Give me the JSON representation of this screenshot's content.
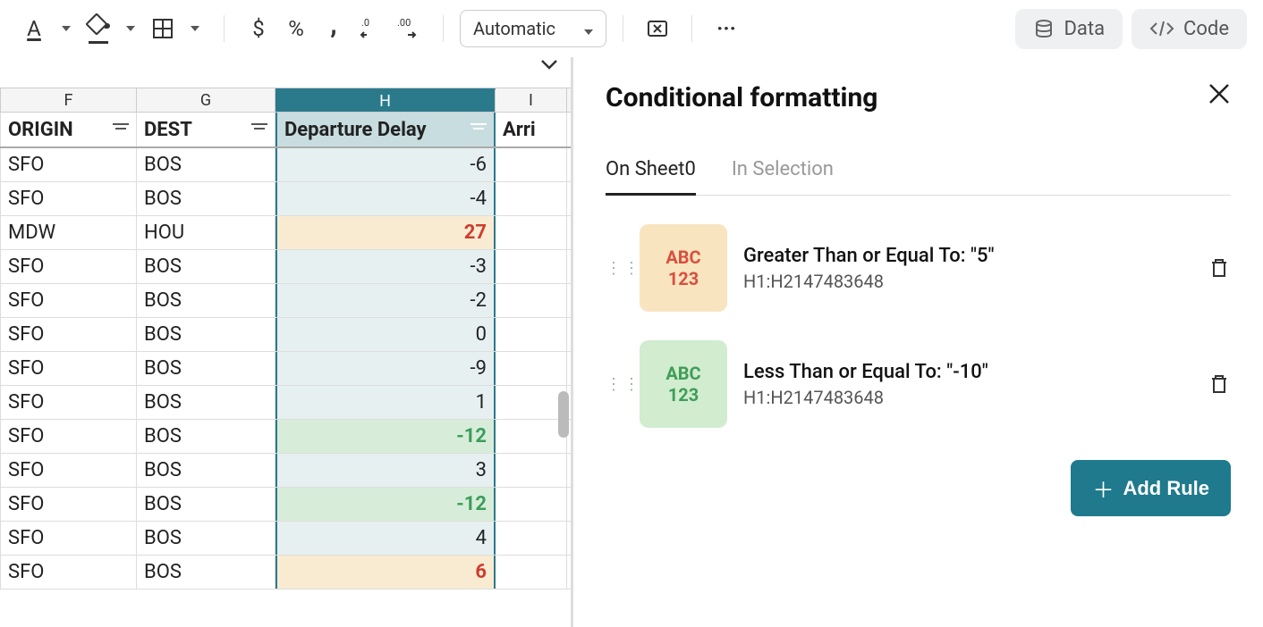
{
  "toolbar": {
    "font_color_label": "A",
    "currency": "$",
    "percent": "%",
    "comma": ",",
    "decimal_dec": ".0",
    "decimal_inc": ".00",
    "format_dropdown": "Automatic",
    "more": "···",
    "data_btn": "Data",
    "code_btn": "Code"
  },
  "sheet": {
    "columns": [
      "F",
      "G",
      "H",
      "I"
    ],
    "headers": {
      "f": "ORIGIN",
      "g": "DEST",
      "h": "Departure Delay",
      "i": "Arri"
    },
    "rows": [
      {
        "f": "SFO",
        "g": "BOS",
        "h": "-6",
        "style": "teal"
      },
      {
        "f": "SFO",
        "g": "BOS",
        "h": "-4",
        "style": "teal"
      },
      {
        "f": "MDW",
        "g": "HOU",
        "h": "27",
        "style": "orange"
      },
      {
        "f": "SFO",
        "g": "BOS",
        "h": "-3",
        "style": "teal"
      },
      {
        "f": "SFO",
        "g": "BOS",
        "h": "-2",
        "style": "teal"
      },
      {
        "f": "SFO",
        "g": "BOS",
        "h": "0",
        "style": "teal"
      },
      {
        "f": "SFO",
        "g": "BOS",
        "h": "-9",
        "style": "teal"
      },
      {
        "f": "SFO",
        "g": "BOS",
        "h": "1",
        "style": "teal"
      },
      {
        "f": "SFO",
        "g": "BOS",
        "h": "-12",
        "style": "green"
      },
      {
        "f": "SFO",
        "g": "BOS",
        "h": "3",
        "style": "teal"
      },
      {
        "f": "SFO",
        "g": "BOS",
        "h": "-12",
        "style": "green"
      },
      {
        "f": "SFO",
        "g": "BOS",
        "h": "4",
        "style": "teal"
      },
      {
        "f": "SFO",
        "g": "BOS",
        "h": "6",
        "style": "orange"
      }
    ]
  },
  "panel": {
    "title": "Conditional formatting",
    "tabs": {
      "sheet": "On Sheet0",
      "selection": "In Selection"
    },
    "rules": [
      {
        "preview_top": "ABC",
        "preview_bot": "123",
        "color": "orange",
        "title": "Greater Than or Equal To: \"5\"",
        "range": "H1:H2147483648"
      },
      {
        "preview_top": "ABC",
        "preview_bot": "123",
        "color": "green",
        "title": "Less Than or Equal To: \"-10\"",
        "range": "H1:H2147483648"
      }
    ],
    "add_rule": "Add Rule"
  }
}
